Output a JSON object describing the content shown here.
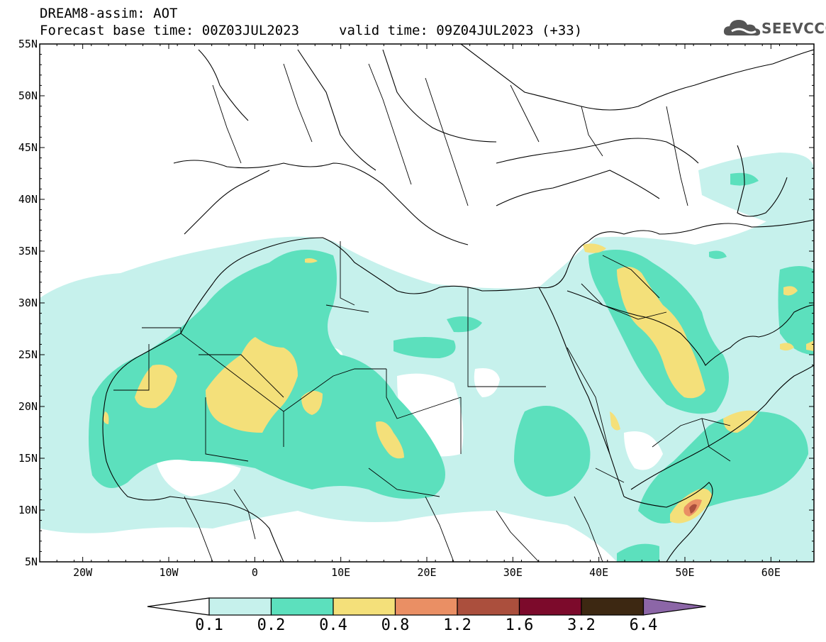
{
  "header": {
    "title_line1": "DREAM8-assim: AOT",
    "title_line2": "Forecast base time: 00Z03JUL2023",
    "valid_time": "valid time: 09Z04JUL2023 (+33)"
  },
  "logo": {
    "text": "SEEVCCC",
    "icon": "cloud-logo-icon"
  },
  "map": {
    "lat_labels": [
      "55N",
      "50N",
      "45N",
      "40N",
      "35N",
      "30N",
      "25N",
      "20N",
      "15N",
      "10N",
      "5N"
    ],
    "lon_labels": [
      "20W",
      "10W",
      "0",
      "10E",
      "20E",
      "30E",
      "40E",
      "50E",
      "60E"
    ]
  },
  "colorbar": {
    "labels": [
      "0.1",
      "0.2",
      "0.4",
      "0.8",
      "1.2",
      "1.6",
      "3.2",
      "6.4"
    ],
    "colors": [
      "#ffffff",
      "#c6f1ec",
      "#5ce0bd",
      "#f4e07a",
      "#ea8f64",
      "#ab4f3d",
      "#7c0a2b",
      "#3d2812",
      "#8c66a7"
    ]
  },
  "palette": {
    "level1": "#c6f1ec",
    "level2": "#5ce0bd",
    "level3": "#f4e07a",
    "level4": "#ea8f64",
    "level5": "#ab4f3d"
  }
}
